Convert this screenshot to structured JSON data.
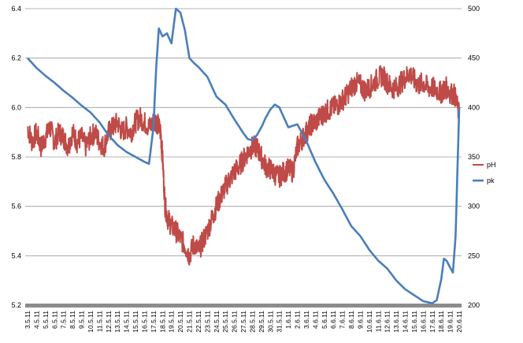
{
  "chart_data": {
    "type": "line",
    "title": "",
    "xlabel": "",
    "ylabel": "",
    "y2label": "",
    "categories": [
      "3.5.11",
      "4.5.11",
      "5.5.11",
      "6.5.11",
      "7.5.11",
      "8.5.11",
      "9.5.11",
      "10.5.11",
      "11.5.11",
      "12.5.11",
      "13.5.11",
      "14.5.11",
      "15.5.11",
      "16.5.11",
      "17.5.11",
      "18.5.11",
      "19.5.11",
      "20.5.11",
      "21.5.11",
      "22.5.11",
      "23.5.11",
      "24.5.11",
      "25.5.11",
      "26.5.11",
      "27.5.11",
      "28.5.11",
      "29.5.11",
      "30.5.11",
      "31.5.11",
      "1.6.11",
      "2.6.11",
      "3.6.11",
      "4.6.11",
      "5.6.11",
      "6.6.11",
      "7.6.11",
      "8.6.11",
      "9.6.11",
      "10.6.11",
      "11.6.11",
      "12.6.11",
      "13.6.11",
      "14.6.11",
      "15.6.11",
      "16.6.11",
      "17.6.11",
      "18.6.11",
      "19.6.11",
      "20.6.11"
    ],
    "ylim": [
      5.2,
      6.4
    ],
    "yticks": [
      "5.2",
      "5.4",
      "5.6",
      "5.8",
      "6.0",
      "6.2",
      "6.4"
    ],
    "y2lim": [
      200,
      500
    ],
    "y2ticks": [
      "200",
      "250",
      "300",
      "350",
      "400",
      "450",
      "500"
    ],
    "grid": true,
    "legend": "right",
    "colors": {
      "pH": "#BE4B48",
      "pk": "#4A7EBB"
    },
    "series": [
      {
        "name": "pH",
        "axis": "left",
        "x": [
          0,
          0.5,
          1,
          1.5,
          2,
          2.5,
          3,
          3.5,
          4,
          4.5,
          5,
          5.5,
          6,
          6.5,
          7,
          7.5,
          8,
          8.5,
          9,
          9.5,
          10,
          10.5,
          11,
          11.5,
          12,
          12.5,
          13,
          13.5,
          14,
          14.2,
          14.5,
          14.8,
          15,
          15.3,
          15.6,
          16,
          16.5,
          17,
          17.5,
          18,
          18.5,
          19,
          19.5,
          20,
          20.5,
          21,
          21.5,
          22,
          22.5,
          23,
          23.5,
          24,
          24.5,
          25,
          25.5,
          26,
          26.5,
          27,
          27.5,
          28,
          28.5,
          29,
          29.5,
          30,
          30.5,
          31,
          31.5,
          32,
          32.5,
          33,
          33.5,
          34,
          34.5,
          35,
          35.5,
          36,
          36.5,
          37,
          37.5,
          38,
          38.5,
          39,
          39.5,
          40,
          40.5,
          41,
          41.5,
          42,
          42.5,
          43,
          43.5,
          44,
          44.5,
          45,
          45.5,
          46,
          46.3,
          46.6,
          47,
          47.5,
          48
        ],
        "values": [
          5.92,
          5.86,
          5.9,
          5.84,
          5.88,
          5.92,
          5.86,
          5.9,
          5.88,
          5.84,
          5.9,
          5.86,
          5.88,
          5.84,
          5.88,
          5.9,
          5.86,
          5.84,
          5.9,
          5.92,
          5.94,
          5.9,
          5.92,
          5.9,
          5.94,
          5.96,
          5.94,
          5.92,
          5.94,
          5.95,
          5.93,
          5.9,
          5.8,
          5.6,
          5.55,
          5.52,
          5.5,
          5.47,
          5.44,
          5.4,
          5.45,
          5.42,
          5.46,
          5.5,
          5.55,
          5.6,
          5.64,
          5.68,
          5.71,
          5.74,
          5.76,
          5.79,
          5.82,
          5.84,
          5.84,
          5.8,
          5.76,
          5.75,
          5.73,
          5.72,
          5.74,
          5.75,
          5.74,
          5.84,
          5.87,
          5.9,
          5.93,
          5.94,
          5.96,
          5.98,
          5.99,
          6.0,
          6.01,
          6.03,
          6.05,
          6.08,
          6.1,
          6.09,
          6.07,
          6.08,
          6.1,
          6.12,
          6.13,
          6.1,
          6.08,
          6.08,
          6.1,
          6.12,
          6.14,
          6.11,
          6.09,
          6.1,
          6.08,
          6.08,
          6.07,
          6.06,
          6.07,
          6.08,
          6.06,
          6.05,
          5.97
        ]
      },
      {
        "name": "pk",
        "axis": "right",
        "x": [
          0,
          1,
          2,
          3,
          4,
          5,
          6,
          7,
          8,
          9,
          10,
          11,
          12,
          13,
          13.5,
          14,
          14.3,
          14.6,
          15,
          15.5,
          16,
          16.5,
          17,
          17.5,
          18,
          18.5,
          19,
          20,
          21,
          22,
          23,
          24,
          24.5,
          25,
          25.5,
          26,
          26.5,
          27,
          27.5,
          28,
          29,
          30,
          31,
          32,
          33,
          34,
          35,
          36,
          37,
          38,
          39,
          40,
          41,
          42,
          43,
          44,
          45,
          45.5,
          46,
          46.3,
          46.6,
          47,
          47.3,
          47.6,
          48
        ],
        "values": [
          450,
          440,
          432,
          425,
          417,
          410,
          402,
          395,
          385,
          372,
          362,
          355,
          350,
          345,
          343,
          380,
          440,
          480,
          472,
          475,
          465,
          500,
          496,
          478,
          450,
          445,
          441,
          431,
          411,
          403,
          388,
          374,
          368,
          367,
          372,
          380,
          390,
          398,
          403,
          400,
          380,
          383,
          366,
          345,
          327,
          313,
          297,
          280,
          270,
          256,
          245,
          237,
          225,
          216,
          210,
          204,
          202,
          205,
          226,
          247,
          245,
          238,
          233,
          270,
          400
        ]
      }
    ]
  }
}
